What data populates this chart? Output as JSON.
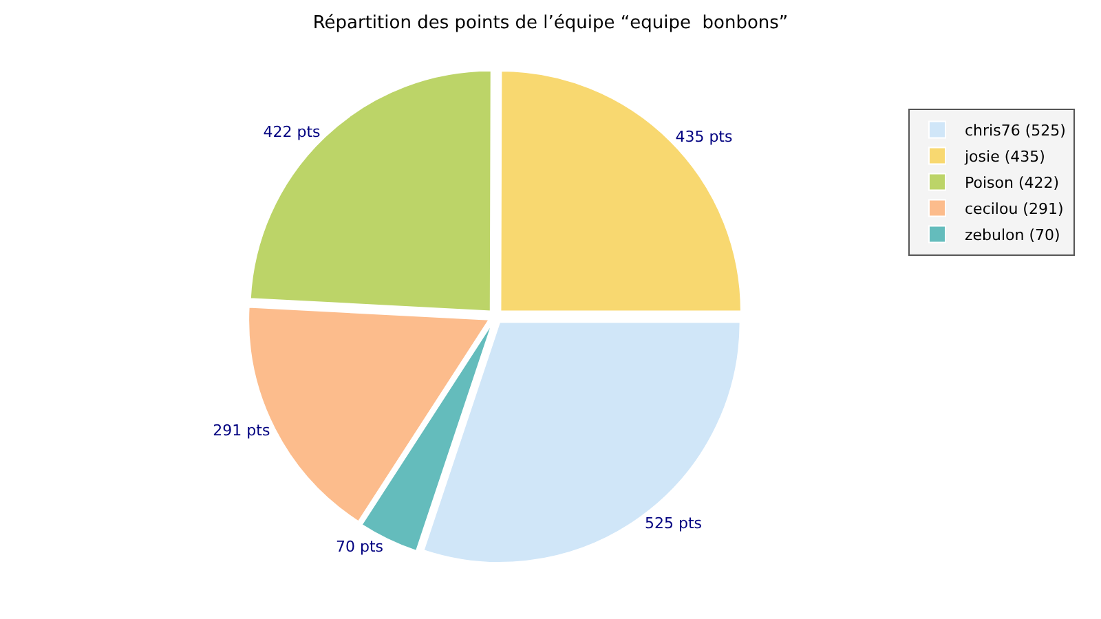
{
  "chart_data": {
    "type": "pie",
    "title": "Répartition des points de l’équipe “equipe  bonbons”",
    "categories": [
      "chris76 (525)",
      "josie (435)",
      "Poison (422)",
      "cecilou (291)",
      "zebulon (70)"
    ],
    "values": [
      525,
      435,
      422,
      291,
      70
    ],
    "value_labels": [
      "525 pts",
      "435 pts",
      "422 pts",
      "291 pts",
      "70 pts"
    ],
    "colors": [
      "#d0e6f8",
      "#f8d870",
      "#bcd468",
      "#fcbc8c",
      "#64bcbc"
    ],
    "legend": "top right"
  }
}
